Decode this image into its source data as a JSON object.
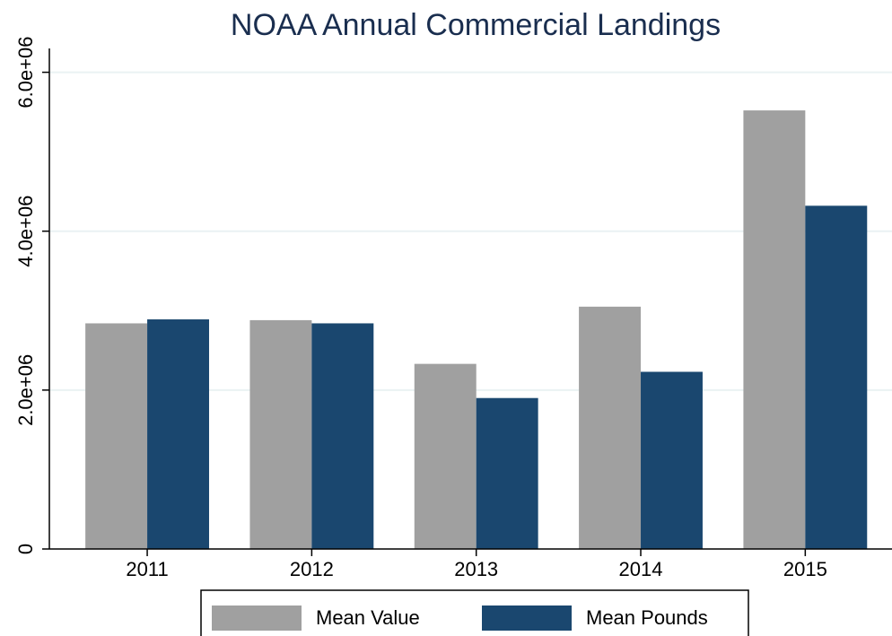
{
  "chart_data": {
    "type": "bar",
    "title": "NOAA Annual Commercial Landings",
    "categories": [
      "2011",
      "2012",
      "2013",
      "2014",
      "2015"
    ],
    "series": [
      {
        "name": "Mean Value",
        "color": "#a0a0a0",
        "values": [
          2840000,
          2880000,
          2330000,
          3050000,
          5520000
        ]
      },
      {
        "name": "Mean Pounds",
        "color": "#1a476f",
        "values": [
          2890000,
          2840000,
          1900000,
          2230000,
          4320000
        ]
      }
    ],
    "ylim": [
      0,
      6300000
    ],
    "yticks": [
      0,
      {
        "value": 2000000,
        "label": "2.0e+06"
      },
      {
        "value": 4000000,
        "label": "4.0e+06"
      },
      {
        "value": 6000000,
        "label": "6.0e+06"
      }
    ],
    "grid": true,
    "legend": "bottom"
  }
}
